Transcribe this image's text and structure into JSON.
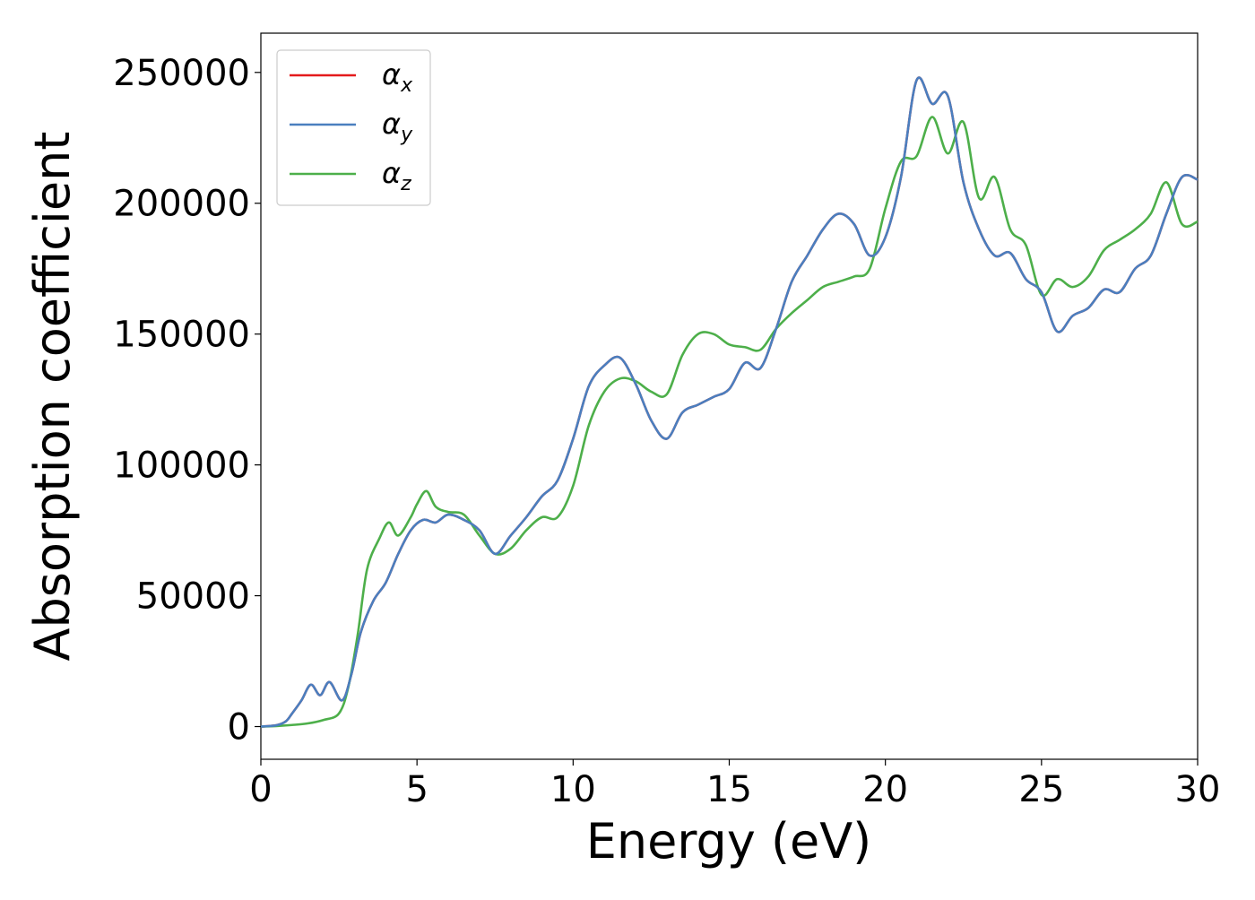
{
  "chart_data": {
    "type": "line",
    "title": "",
    "xlabel": "Energy (eV)",
    "ylabel": "Absorption coefficient",
    "xlim": [
      0,
      30
    ],
    "ylim": [
      -12500,
      265000
    ],
    "xticks": [
      "0",
      "5",
      "10",
      "15",
      "20",
      "25",
      "30"
    ],
    "yticks": [
      "0",
      "50000",
      "100000",
      "150000",
      "200000",
      "250000"
    ],
    "grid": false,
    "legend": {
      "placement": "top-left",
      "entries": [
        {
          "symbol": "α",
          "sub": "x",
          "color": "#e41a1c"
        },
        {
          "symbol": "α",
          "sub": "y",
          "color": "#4a7fbf"
        },
        {
          "symbol": "α",
          "sub": "z",
          "color": "#4daf4a"
        }
      ]
    },
    "series": [
      {
        "id": "alpha_x",
        "color": "#e41a1c",
        "x": [
          0,
          0.5,
          0.8,
          1.0,
          1.3,
          1.6,
          1.9,
          2.2,
          2.6,
          2.9,
          3.2,
          3.6,
          4.0,
          4.4,
          4.8,
          5.2,
          5.6,
          6.0,
          6.5,
          7.0,
          7.5,
          8.0,
          8.5,
          9.0,
          9.5,
          10.0,
          10.5,
          11.0,
          11.5,
          12.0,
          12.5,
          13.0,
          13.5,
          14.0,
          14.5,
          15.0,
          15.5,
          16.0,
          16.5,
          17.0,
          17.5,
          18.0,
          18.5,
          19.0,
          19.5,
          20.0,
          20.5,
          21.0,
          21.5,
          22.0,
          22.5,
          23.0,
          23.5,
          24.0,
          24.5,
          25.0,
          25.5,
          26.0,
          26.5,
          27.0,
          27.5,
          28.0,
          28.5,
          29.0,
          29.5,
          30.0
        ],
        "y": [
          0,
          500,
          2000,
          5000,
          10000,
          16000,
          12000,
          17000,
          10000,
          20000,
          36000,
          48000,
          55000,
          66000,
          75000,
          79000,
          78000,
          81000,
          79000,
          75000,
          66000,
          73000,
          80000,
          88000,
          94000,
          110000,
          130000,
          138000,
          141000,
          131000,
          117000,
          110000,
          120000,
          123000,
          126000,
          129000,
          139000,
          137000,
          152000,
          170000,
          180000,
          190000,
          196000,
          192000,
          180000,
          187000,
          210000,
          247000,
          238000,
          241000,
          208000,
          190000,
          180000,
          181000,
          171000,
          166000,
          151000,
          157000,
          160000,
          167000,
          166000,
          175000,
          180000,
          196000,
          210000,
          209000
        ]
      },
      {
        "id": "alpha_y",
        "color": "#4a7fbf",
        "x": [
          0,
          0.5,
          0.8,
          1.0,
          1.3,
          1.6,
          1.9,
          2.2,
          2.6,
          2.9,
          3.2,
          3.6,
          4.0,
          4.4,
          4.8,
          5.2,
          5.6,
          6.0,
          6.5,
          7.0,
          7.5,
          8.0,
          8.5,
          9.0,
          9.5,
          10.0,
          10.5,
          11.0,
          11.5,
          12.0,
          12.5,
          13.0,
          13.5,
          14.0,
          14.5,
          15.0,
          15.5,
          16.0,
          16.5,
          17.0,
          17.5,
          18.0,
          18.5,
          19.0,
          19.5,
          20.0,
          20.5,
          21.0,
          21.5,
          22.0,
          22.5,
          23.0,
          23.5,
          24.0,
          24.5,
          25.0,
          25.5,
          26.0,
          26.5,
          27.0,
          27.5,
          28.0,
          28.5,
          29.0,
          29.5,
          30.0
        ],
        "y": [
          0,
          500,
          2000,
          5000,
          10000,
          16000,
          12000,
          17000,
          10000,
          20000,
          36000,
          48000,
          55000,
          66000,
          75000,
          79000,
          78000,
          81000,
          79000,
          75000,
          66000,
          73000,
          80000,
          88000,
          94000,
          110000,
          130000,
          138000,
          141000,
          131000,
          117000,
          110000,
          120000,
          123000,
          126000,
          129000,
          139000,
          137000,
          152000,
          170000,
          180000,
          190000,
          196000,
          192000,
          180000,
          187000,
          210000,
          247000,
          238000,
          241000,
          208000,
          190000,
          180000,
          181000,
          171000,
          166000,
          151000,
          157000,
          160000,
          167000,
          166000,
          175000,
          180000,
          196000,
          210000,
          209000
        ]
      },
      {
        "id": "alpha_z",
        "color": "#4daf4a",
        "x": [
          0,
          0.5,
          1.0,
          1.5,
          2.0,
          2.5,
          2.8,
          3.1,
          3.4,
          3.8,
          4.1,
          4.4,
          4.8,
          5.0,
          5.3,
          5.6,
          6.0,
          6.5,
          7.0,
          7.5,
          8.0,
          8.5,
          9.0,
          9.5,
          10.0,
          10.5,
          11.0,
          11.5,
          12.0,
          12.5,
          13.0,
          13.5,
          14.0,
          14.5,
          15.0,
          15.5,
          16.0,
          16.5,
          17.0,
          17.5,
          18.0,
          18.5,
          19.0,
          19.5,
          20.0,
          20.5,
          21.0,
          21.5,
          22.0,
          22.5,
          23.0,
          23.5,
          24.0,
          24.5,
          25.0,
          25.5,
          26.0,
          26.5,
          27.0,
          27.5,
          28.0,
          28.5,
          29.0,
          29.5,
          30.0
        ],
        "y": [
          0,
          200,
          600,
          1200,
          2500,
          5000,
          15000,
          35000,
          60000,
          72000,
          78000,
          73000,
          80000,
          85000,
          90000,
          84000,
          82000,
          81000,
          73000,
          66000,
          68000,
          75000,
          80000,
          80000,
          92000,
          115000,
          128000,
          133000,
          132000,
          128000,
          127000,
          142000,
          150000,
          150000,
          146000,
          145000,
          144000,
          152000,
          158000,
          163000,
          168000,
          170000,
          172000,
          175000,
          198000,
          216000,
          218000,
          233000,
          219000,
          231000,
          202000,
          210000,
          190000,
          184000,
          165000,
          171000,
          168000,
          172000,
          182000,
          186000,
          190000,
          196000,
          208000,
          192000,
          193000
        ]
      }
    ]
  }
}
